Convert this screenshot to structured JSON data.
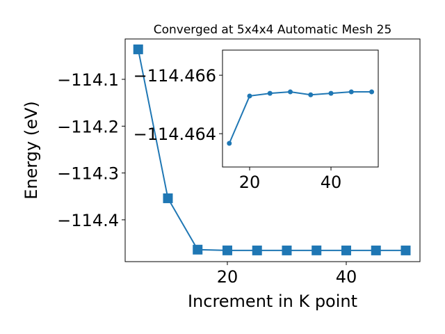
{
  "chart_data": [
    {
      "type": "line",
      "title": "Converged at 5x4x4 Automatic Mesh 25",
      "x_label": "Increment in K point",
      "y_label": "Energy (eV)",
      "marker": "square",
      "series": [
        {
          "color": "#1f77b4",
          "x": [
            5,
            10,
            15,
            20,
            25,
            30,
            35,
            40,
            45,
            50
          ],
          "values": [
            -114.036,
            -114.354,
            -114.4637,
            -114.4653,
            -114.4654,
            -114.4654,
            -114.4653,
            -114.4654,
            -114.4654,
            -114.4654
          ]
        }
      ],
      "xlim": [
        2.81,
        52.4
      ],
      "ylim": [
        -114.4893,
        -114.0138
      ],
      "xticks": [
        20,
        40
      ],
      "yticks": [
        {
          "value": -114.1,
          "label": "−114.1"
        },
        {
          "value": -114.2,
          "label": "−114.2"
        },
        {
          "value": -114.3,
          "label": "−114.3"
        },
        {
          "value": -114.4,
          "label": "−114.4"
        }
      ]
    },
    {
      "type": "line",
      "marker": "circle",
      "series": [
        {
          "color": "#1f77b4",
          "x": [
            15,
            20,
            25,
            30,
            35,
            40,
            45,
            50
          ],
          "values": [
            -114.46367,
            -114.46529,
            -114.46538,
            -114.46543,
            -114.46533,
            -114.46538,
            -114.46543,
            -114.46543
          ]
        }
      ],
      "xlim": [
        13.33,
        51.62
      ],
      "ylim": [
        -114.46286,
        -114.46686
      ],
      "xticks": [
        20,
        40
      ],
      "yticks": [
        {
          "value": -114.466,
          "label": "−114.466"
        },
        {
          "value": -114.464,
          "label": "−114.464"
        }
      ]
    }
  ]
}
